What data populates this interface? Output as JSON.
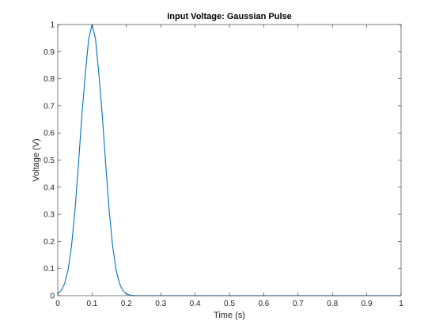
{
  "chart_data": {
    "type": "line",
    "title": "Input Voltage: Gaussian Pulse",
    "xlabel": "Time (s)",
    "ylabel": "Voltage (V)",
    "xlim": [
      0,
      1
    ],
    "ylim": [
      0,
      1
    ],
    "xticks": [
      0,
      0.1,
      0.2,
      0.3,
      0.4,
      0.5,
      0.6,
      0.7,
      0.8,
      0.9,
      1
    ],
    "xtick_labels": [
      "0",
      "0.1",
      "0.2",
      "0.3",
      "0.4",
      "0.5",
      "0.6",
      "0.7",
      "0.8",
      "0.9",
      "1"
    ],
    "yticks": [
      0,
      0.1,
      0.2,
      0.3,
      0.4,
      0.5,
      0.6,
      0.7,
      0.8,
      0.9,
      1
    ],
    "ytick_labels": [
      "0",
      "0.1",
      "0.2",
      "0.3",
      "0.4",
      "0.5",
      "0.6",
      "0.7",
      "0.8",
      "0.9",
      "1"
    ],
    "grid": false,
    "series": [
      {
        "color": "#0072bd",
        "x": [
          0,
          0.01,
          0.02,
          0.03,
          0.04,
          0.05,
          0.06,
          0.07,
          0.08,
          0.09,
          0.1,
          0.11,
          0.12,
          0.13,
          0.14,
          0.15,
          0.16,
          0.17,
          0.18,
          0.19,
          0.2,
          0.21,
          0.22,
          0.23,
          0.24,
          0.25,
          0.3,
          0.4,
          0.5,
          0.6,
          0.7,
          0.8,
          0.9,
          1
        ],
        "y": [
          0.0067,
          0.0183,
          0.0439,
          0.0943,
          0.1814,
          0.3114,
          0.4795,
          0.6603,
          0.8133,
          0.9465,
          1.0,
          0.9465,
          0.8133,
          0.6603,
          0.4795,
          0.3114,
          0.1814,
          0.0943,
          0.0439,
          0.0183,
          0.0067,
          0.0022,
          0.0006,
          0.0001,
          0.0,
          0.0,
          0.0,
          0.0,
          0.0,
          0.0,
          0.0,
          0.0,
          0.0,
          0.0
        ]
      }
    ]
  }
}
